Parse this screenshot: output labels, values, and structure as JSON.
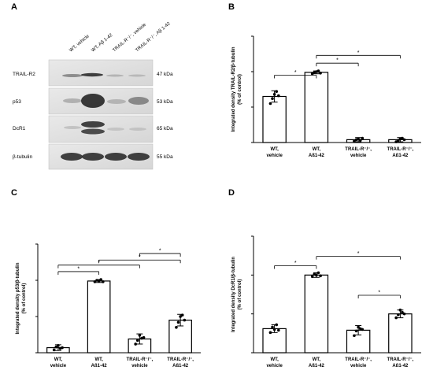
{
  "figure": {
    "panel_letters": [
      "A",
      "B",
      "C",
      "D"
    ]
  },
  "blot": {
    "lanes": [
      "WT, vehicle",
      "WT, Aβ 1-42",
      "TRAIL-R⁻/⁻, vehicle",
      "TRAIL-R⁻/⁻, Aβ 1-42"
    ],
    "rows": [
      {
        "label": "TRAIL-R2",
        "kda": "47 kDa"
      },
      {
        "label": "p53",
        "kda": "53 kDa"
      },
      {
        "label": "DcR1",
        "kda": "65 kDa"
      },
      {
        "label": "β-tubulin",
        "kda": "55 kDa"
      }
    ]
  },
  "chart_data": [
    {
      "panel": "B",
      "type": "bar",
      "categories": [
        "WT,\nvehicle",
        "WT,\nAß1-42",
        "TRAIL-R⁻/⁻,\nvehicle",
        "TRAIL-R⁻/⁻,\nAß1-42"
      ],
      "values": [
        65,
        99,
        4,
        4
      ],
      "errors": [
        8,
        2,
        3,
        3
      ],
      "points": [
        [
          55,
          62,
          68,
          72,
          66
        ],
        [
          97,
          99,
          100,
          101,
          98
        ],
        [
          2,
          4,
          5,
          3,
          6
        ],
        [
          1,
          3,
          5,
          6,
          4
        ]
      ],
      "ylabel": "Integrated density TRAIL-R2/β-tubulin\n(% of control)",
      "ylim": [
        0,
        150
      ],
      "yticks": [
        0,
        50,
        100,
        150
      ],
      "significance": [
        {
          "from": 0,
          "to": 1,
          "label": "*",
          "level": 95
        },
        {
          "from": 1,
          "to": 2,
          "label": "*",
          "level": 112
        },
        {
          "from": 1,
          "to": 3,
          "label": "*",
          "level": 123
        }
      ]
    },
    {
      "panel": "C",
      "type": "bar",
      "categories": [
        "WT,\nvehicle",
        "WT,\nAß1-42",
        "TRAIL-R⁻/⁻,\nvehicle",
        "TRAIL-R⁻/⁻,\nAß1-42"
      ],
      "values": [
        7,
        99,
        19,
        45
      ],
      "errors": [
        4,
        2,
        7,
        8
      ],
      "points": [
        [
          4,
          8,
          10,
          6,
          7
        ],
        [
          98,
          100,
          99,
          101,
          98
        ],
        [
          12,
          17,
          24,
          20,
          21
        ],
        [
          35,
          42,
          50,
          52,
          45
        ]
      ],
      "ylabel": "Integrated density p53/β-tubulin\n(% of control)",
      "ylim": [
        0,
        150
      ],
      "yticks": [
        0,
        50,
        100,
        150
      ],
      "significance": [
        {
          "from": 0,
          "to": 1,
          "label": "*",
          "level": 112
        },
        {
          "from": 0,
          "to": 2,
          "label": "*",
          "level": 121
        },
        {
          "from": 1,
          "to": 3,
          "label": "*",
          "level": 128
        },
        {
          "from": 2,
          "to": 3,
          "label": "*",
          "level": 137
        }
      ]
    },
    {
      "panel": "D",
      "type": "bar",
      "categories": [
        "WT,\nvehicle",
        "WT,\nAß1-42",
        "TRAIL-R⁻/⁻,\nvehicle",
        "TRAIL-R⁻/⁻,\nAß1-42"
      ],
      "values": [
        31,
        100,
        29,
        50
      ],
      "errors": [
        5,
        3,
        6,
        5
      ],
      "points": [
        [
          26,
          33,
          30,
          36,
          29
        ],
        [
          98,
          101,
          100,
          103,
          99
        ],
        [
          22,
          28,
          33,
          31,
          30
        ],
        [
          45,
          49,
          55,
          52,
          50
        ]
      ],
      "ylabel": "Integrated density DcR1/β-tubulin\n(% of control)",
      "ylim": [
        0,
        150
      ],
      "yticks": [
        0,
        50,
        100,
        150
      ],
      "significance": [
        {
          "from": 0,
          "to": 1,
          "label": "*",
          "level": 112
        },
        {
          "from": 2,
          "to": 3,
          "label": "*",
          "level": 74
        },
        {
          "from": 1,
          "to": 3,
          "label": "*",
          "level": 124
        }
      ]
    }
  ]
}
